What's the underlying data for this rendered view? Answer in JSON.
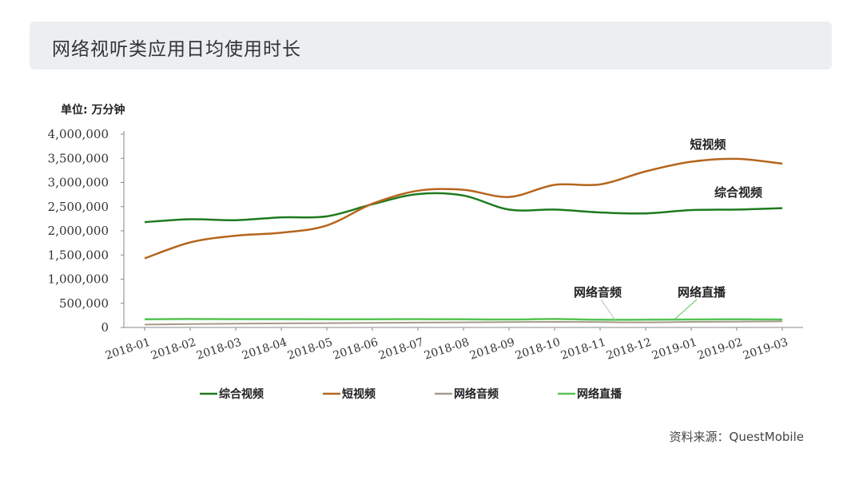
{
  "page": {
    "title": "网络视听类应用日均使用时长",
    "unit_label": "单位: 万分钟",
    "source": "资料来源：QuestMobile"
  },
  "colors": {
    "综合视频": "#1e7a1e",
    "短视频": "#b5651d",
    "网络音频": "#a79a8a",
    "网络直播": "#55c455"
  },
  "chart_data": {
    "type": "line",
    "categories": [
      "2018-01",
      "2018-02",
      "2018-03",
      "2018-04",
      "2018-05",
      "2018-06",
      "2018-07",
      "2018-08",
      "2018-09",
      "2018-10",
      "2018-11",
      "2018-12",
      "2019-01",
      "2019-02",
      "2019-03"
    ],
    "ylim": [
      0,
      4000000
    ],
    "yticks": [
      0,
      500000,
      1000000,
      1500000,
      2000000,
      2500000,
      3000000,
      3500000,
      4000000
    ],
    "ytick_labels": [
      "0",
      "500,000",
      "1,000,000",
      "1,500,000",
      "2,000,000",
      "2,500,000",
      "3,000,000",
      "3,500,000",
      "4,000,000"
    ],
    "grid": false,
    "legend": "bottom",
    "series": [
      {
        "name": "综合视频",
        "values": [
          2180000,
          2240000,
          2220000,
          2280000,
          2300000,
          2550000,
          2760000,
          2730000,
          2440000,
          2440000,
          2380000,
          2360000,
          2430000,
          2440000,
          2470000
        ]
      },
      {
        "name": "短视频",
        "values": [
          1430000,
          1760000,
          1900000,
          1960000,
          2110000,
          2560000,
          2830000,
          2850000,
          2700000,
          2950000,
          2960000,
          3230000,
          3430000,
          3490000,
          3390000
        ]
      },
      {
        "name": "网络音频",
        "values": [
          60000,
          70000,
          80000,
          85000,
          90000,
          95000,
          100000,
          105000,
          110000,
          115000,
          110000,
          105000,
          115000,
          120000,
          125000
        ]
      },
      {
        "name": "网络直播",
        "values": [
          170000,
          175000,
          172000,
          172000,
          170000,
          170000,
          172000,
          170000,
          165000,
          175000,
          160000,
          160000,
          165000,
          168000,
          165000
        ]
      }
    ],
    "annotations": {
      "短视频": "短视频",
      "综合视频": "综合视频",
      "网络音频": "网络音频",
      "网络直播": "网络直播"
    }
  }
}
